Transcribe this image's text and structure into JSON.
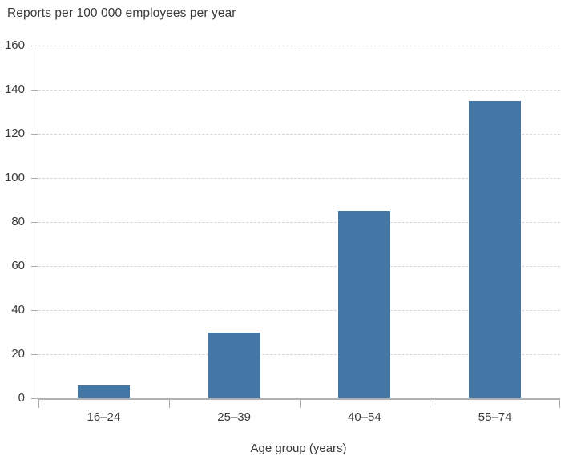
{
  "chart_data": {
    "type": "bar",
    "title": "Reports per 100 000 employees per year",
    "categories": [
      "16–24",
      "25–39",
      "40–54",
      "55–74"
    ],
    "values": [
      6,
      30,
      85,
      135
    ],
    "xlabel": "Age group (years)",
    "ylabel": "Reports per 100 000 employees per year",
    "ylim": [
      0,
      160
    ],
    "yticks": [
      0,
      20,
      40,
      60,
      80,
      100,
      120,
      140,
      160
    ],
    "grid": "horizontal-dashed",
    "legend": "none",
    "bar_color": "#4577a6",
    "axis_color": "#ababae",
    "grid_color": "#d6d6d6",
    "text_color": "#3a3a3c"
  }
}
